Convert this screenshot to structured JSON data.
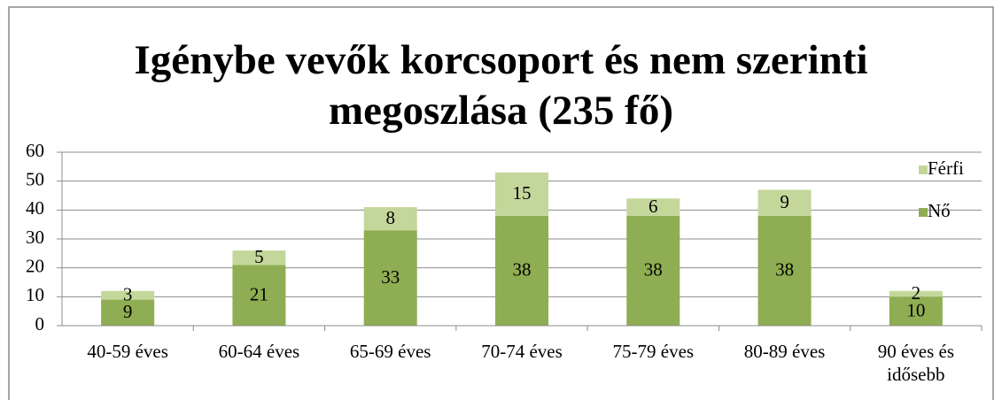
{
  "chart_data": {
    "type": "stacked_bar",
    "title": "Igénybe vevők korcsoport és nem szerinti megoszlása (235 fő)",
    "categories": [
      "40-59 éves",
      "60-64 éves",
      "65-69 éves",
      "70-74 éves",
      "75-79 éves",
      "80-89 éves",
      "90 éves és idősebb"
    ],
    "series": [
      {
        "name": "Nő",
        "color": "#8fad52",
        "values": [
          9,
          21,
          33,
          38,
          38,
          38,
          10
        ]
      },
      {
        "name": "Férfi",
        "color": "#c4d79b",
        "values": [
          3,
          5,
          8,
          15,
          6,
          9,
          2
        ]
      }
    ],
    "ylim": [
      0,
      60
    ],
    "yticks": [
      0,
      10,
      20,
      30,
      40,
      50,
      60
    ],
    "grid": true,
    "legend": "right"
  }
}
